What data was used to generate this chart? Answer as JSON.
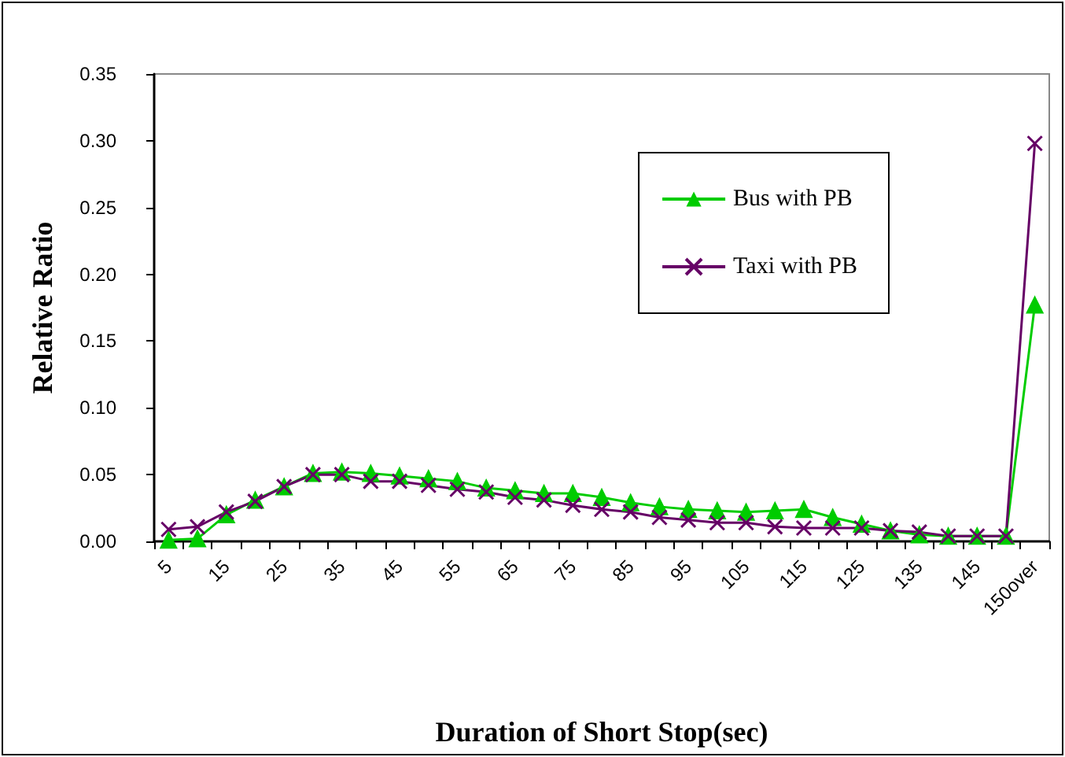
{
  "chart_data": {
    "type": "line",
    "xlabel": "Duration of Short Stop(sec)",
    "ylabel": "Relative Ratio",
    "categories": [
      "5",
      null,
      "15",
      null,
      "25",
      null,
      "35",
      null,
      "45",
      null,
      "55",
      null,
      "65",
      null,
      "75",
      null,
      "85",
      null,
      "95",
      null,
      "105",
      null,
      "115",
      null,
      "125",
      null,
      "135",
      null,
      "145",
      null,
      "150over"
    ],
    "series": [
      {
        "name": "Bus with PB",
        "color": "#00cc00",
        "marker": "triangle",
        "values": [
          0.001,
          0.002,
          0.02,
          0.031,
          0.041,
          0.051,
          0.052,
          0.051,
          0.049,
          0.047,
          0.045,
          0.04,
          0.038,
          0.036,
          0.036,
          0.033,
          0.029,
          0.026,
          0.024,
          0.023,
          0.022,
          0.023,
          0.024,
          0.018,
          0.013,
          0.008,
          0.005,
          0.004,
          0.004,
          0.004,
          0.177
        ]
      },
      {
        "name": "Taxi with PB",
        "color": "#660066",
        "marker": "cross",
        "values": [
          0.009,
          0.011,
          0.022,
          0.03,
          0.041,
          0.05,
          0.05,
          0.045,
          0.045,
          0.042,
          0.039,
          0.037,
          0.033,
          0.031,
          0.027,
          0.024,
          0.022,
          0.018,
          0.016,
          0.014,
          0.014,
          0.011,
          0.01,
          0.01,
          0.01,
          0.008,
          0.007,
          0.004,
          0.004,
          0.004,
          0.298
        ]
      }
    ],
    "ylim": [
      0,
      0.35
    ],
    "yticks": [
      {
        "value": 0,
        "label": "0.00"
      },
      0.05,
      {
        "value": 0.1,
        "label": "0.10"
      },
      0.15,
      {
        "value": 0.2,
        "label": "0.20"
      },
      0.25,
      {
        "value": 0.3,
        "label": "0.30"
      },
      0.35
    ],
    "grid": false,
    "legend": "top right"
  }
}
